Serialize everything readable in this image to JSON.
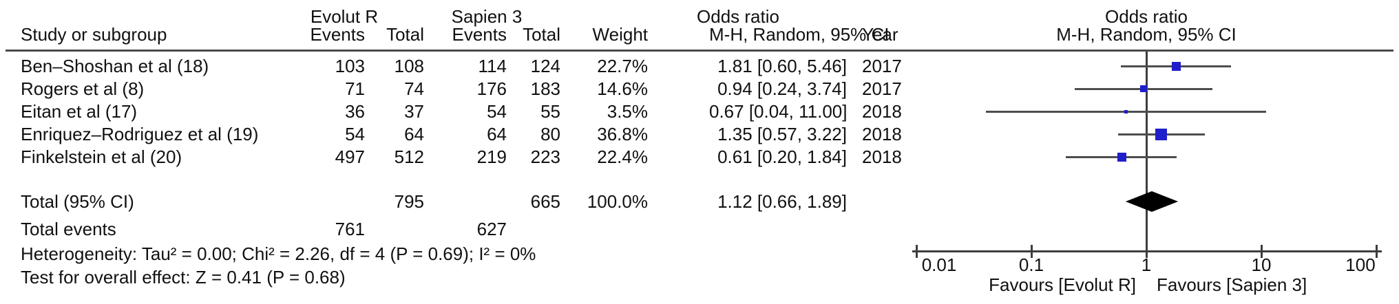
{
  "group_header": {
    "evolut": "Evolut R",
    "sapien": "Sapien 3",
    "odds_ratio_left": "Odds ratio",
    "odds_ratio_right": "Odds ratio"
  },
  "column_header": {
    "study": "Study or subgroup",
    "events1": "Events",
    "total1": "Total",
    "events2": "Events",
    "total2": "Total",
    "weight": "Weight",
    "mh_random": "M-H, Random, 95% CI",
    "year": "Year",
    "mh_random_right": "M-H, Random, 95% CI"
  },
  "rows": [
    {
      "name": "Ben–Shoshan et al (18)",
      "events1": "103",
      "total1": "108",
      "events2": "114",
      "total2": "124",
      "weight": "22.7%",
      "or_ci": "1.81 [0.60, 5.46]",
      "year": "2017"
    },
    {
      "name": "Rogers et al (8)",
      "events1": "71",
      "total1": "74",
      "events2": "176",
      "total2": "183",
      "weight": "14.6%",
      "or_ci": "0.94 [0.24, 3.74]",
      "year": "2017"
    },
    {
      "name": "Eitan et al (17)",
      "events1": "36",
      "total1": "37",
      "events2": "54",
      "total2": "55",
      "weight": "3.5%",
      "or_ci": "0.67 [0.04, 11.00]",
      "year": "2018"
    },
    {
      "name": "Enriquez–Rodriguez et al (19)",
      "events1": "54",
      "total1": "64",
      "events2": "64",
      "total2": "80",
      "weight": "36.8%",
      "or_ci": "1.35 [0.57, 3.22]",
      "year": "2018"
    },
    {
      "name": "Finkelstein et al (20)",
      "events1": "497",
      "total1": "512",
      "events2": "219",
      "total2": "223",
      "weight": "22.4%",
      "or_ci": "0.61 [0.20, 1.84]",
      "year": "2018"
    }
  ],
  "total_row": {
    "label": "Total (95% CI)",
    "total1": "795",
    "total2": "665",
    "weight": "100.0%",
    "or_ci": "1.12 [0.66, 1.89]"
  },
  "total_events_row": {
    "label": "Total events",
    "events1": "761",
    "events2": "627"
  },
  "heterogeneity": "Heterogeneity: Tau² = 0.00; Chi² = 2.26, df = 4 (P = 0.69); I² = 0%",
  "overall_effect": "Test for overall effect: Z = 0.41 (P = 0.68)",
  "axis": {
    "tick_labels": [
      "0.01",
      "0.1",
      "1",
      "10",
      "100"
    ],
    "favours_left": "Favours [Evolut R]",
    "favours_right": "Favours [Sapien 3]"
  },
  "colors": {
    "square_blue": "#1e1ecb",
    "ci_line": "#4d4d4d",
    "axis": "#3d3d3d",
    "diamond": "#000000"
  },
  "chart_data": {
    "type": "forest",
    "x_scale": "log10",
    "x_range": [
      0.01,
      100
    ],
    "x_ticks": [
      0.01,
      0.1,
      1,
      10,
      100
    ],
    "null_line": 1,
    "effect_measure": "Odds ratio, M-H, Random, 95% CI",
    "studies": [
      {
        "name": "Ben–Shoshan et al (18)",
        "or": 1.81,
        "ci_low": 0.6,
        "ci_high": 5.46,
        "weight_pct": 22.7,
        "year": 2017
      },
      {
        "name": "Rogers et al (8)",
        "or": 0.94,
        "ci_low": 0.24,
        "ci_high": 3.74,
        "weight_pct": 14.6,
        "year": 2017
      },
      {
        "name": "Eitan et al (17)",
        "or": 0.67,
        "ci_low": 0.04,
        "ci_high": 11.0,
        "weight_pct": 3.5,
        "year": 2018
      },
      {
        "name": "Enriquez–Rodriguez et al (19)",
        "or": 1.35,
        "ci_low": 0.57,
        "ci_high": 3.22,
        "weight_pct": 36.8,
        "year": 2018
      },
      {
        "name": "Finkelstein et al (20)",
        "or": 0.61,
        "ci_low": 0.2,
        "ci_high": 1.84,
        "weight_pct": 22.4,
        "year": 2018
      }
    ],
    "total": {
      "label": "Total (95% CI)",
      "or": 1.12,
      "ci_low": 0.66,
      "ci_high": 1.89,
      "heterogeneity": {
        "tau2": 0.0,
        "chi2": 2.26,
        "df": 4,
        "p": 0.69,
        "i2_pct": 0
      },
      "overall_effect": {
        "z": 0.41,
        "p": 0.68
      }
    }
  }
}
